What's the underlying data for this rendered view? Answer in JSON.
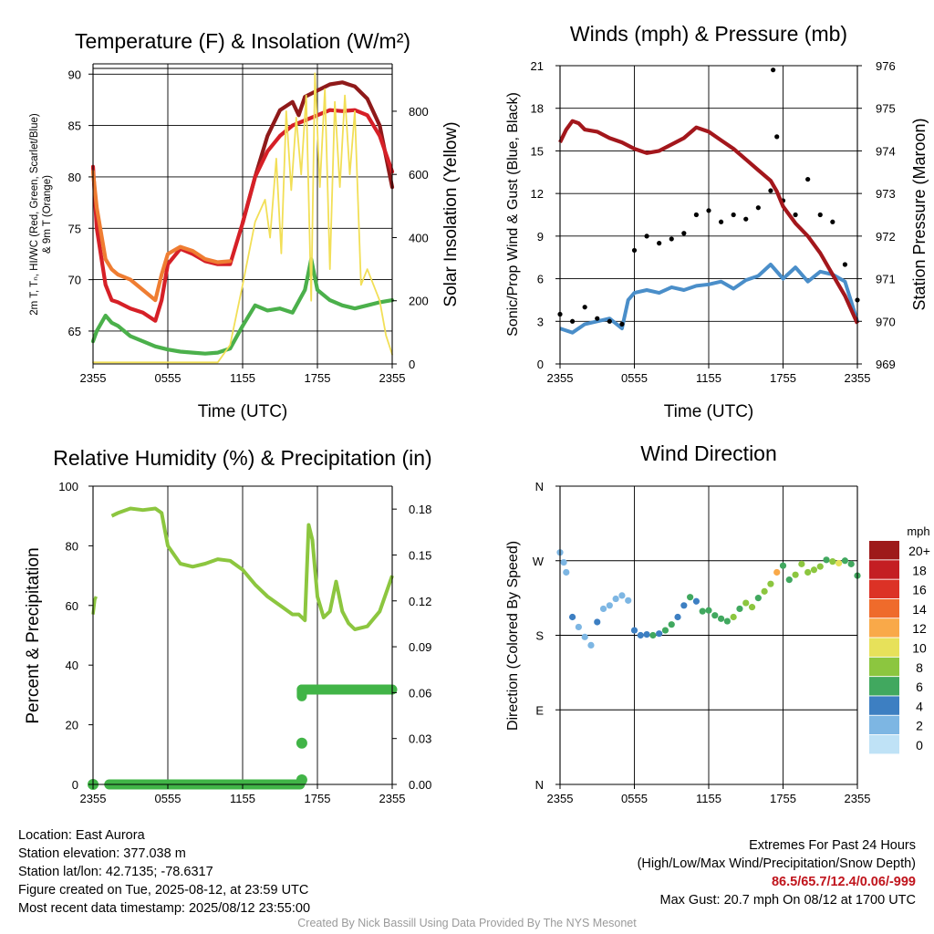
{
  "panels": {
    "temp": {
      "title": "Temperature (F) & Insolation (W/m²)",
      "xlabel": "Time (UTC)",
      "ylabel_left_1": "2m T, Tₙ, HI/WC (Red, Green, Scarlet/Blue)",
      "ylabel_left_2": "& 9m T (Orange)",
      "ylabel_right": "Solar Insolation (Yellow)",
      "xticks": [
        "2355",
        "0555",
        "1155",
        "1755",
        "2355"
      ],
      "yticks_left": [
        "65",
        "70",
        "75",
        "80",
        "85",
        "90"
      ],
      "yticks_right": [
        "0",
        "200",
        "400",
        "600",
        "800"
      ]
    },
    "wind": {
      "title": "Winds (mph) & Pressure (mb)",
      "xlabel": "Time (UTC)",
      "ylabel_left": "Sonic/Prop Wind & Gust (Blue, Black)",
      "ylabel_right": "Station Pressure (Maroon)",
      "xticks": [
        "2355",
        "0555",
        "1155",
        "1755",
        "2355"
      ],
      "yticks_left": [
        "0",
        "3",
        "6",
        "9",
        "12",
        "15",
        "18",
        "21"
      ],
      "yticks_right": [
        "969",
        "970",
        "971",
        "972",
        "973",
        "974",
        "975",
        "976"
      ]
    },
    "rh": {
      "title": "Relative Humidity (%) & Precipitation (in)",
      "ylabel_left": "Percent & Precipitation",
      "xticks": [
        "2355",
        "0555",
        "1155",
        "1755",
        "2355"
      ],
      "yticks_left": [
        "0",
        "20",
        "40",
        "60",
        "80",
        "100"
      ],
      "yticks_right": [
        "0.00",
        "0.03",
        "0.06",
        "0.09",
        "0.12",
        "0.15",
        "0.18"
      ]
    },
    "dir": {
      "title": "Wind Direction",
      "ylabel_left": "Direction (Colored By Speed)",
      "xticks": [
        "2355",
        "0555",
        "1155",
        "1755",
        "2355"
      ],
      "yticks_left": [
        "N",
        "E",
        "S",
        "W",
        "N"
      ],
      "legend_title": "mph",
      "legend_labels": [
        "20+",
        "18",
        "16",
        "14",
        "12",
        "10",
        "8",
        "6",
        "4",
        "2",
        "0"
      ],
      "legend_colors": [
        "#9e1a1a",
        "#c41e23",
        "#dc3226",
        "#ef6b2b",
        "#f9a949",
        "#e7e15a",
        "#8cc63f",
        "#41a85f",
        "#3d7fc2",
        "#7db6e3",
        "#bfe2f6"
      ]
    }
  },
  "info": {
    "location": "Location: East Aurora",
    "elevation": "Station elevation: 377.038 m",
    "latlon": "Station lat/lon: 42.7135; -78.6317",
    "created": "Figure created on Tue, 2025-08-12, at 23:59 UTC",
    "recent": "Most recent data timestamp: 2025/08/12 23:55:00",
    "extremes_title": "Extremes For Past 24 Hours",
    "extremes_sub": "(High/Low/Max Wind/Precipitation/Snow Depth)",
    "extremes_values": "86.5/65.7/12.4/0.06/-999",
    "max_gust": "Max Gust: 20.7 mph On 08/12 at 1700 UTC"
  },
  "credit": "Created By Nick Bassill Using Data Provided By The NYS Mesonet",
  "chart_data": [
    {
      "type": "line",
      "title": "Temperature (F) & Insolation (W/m²)",
      "xlabel": "Time (UTC)",
      "ylabel": "2m T, Tₙ, HI/WC (Red, Green, Scarlet/Blue) & 9m T (Orange)",
      "y2label": "Solar Insolation (Yellow)",
      "x_unit": "hours since 2355 UTC",
      "xlim": [
        0,
        24
      ],
      "ylim": [
        61.8,
        91
      ],
      "y2lim": [
        0,
        950
      ],
      "series": [
        {
          "name": "Heat Index (Scarlet)",
          "color": "#8f1a1a",
          "axis": "left",
          "x": [
            12,
            13,
            14,
            15,
            16,
            16.5,
            17,
            18,
            19,
            20,
            21,
            22,
            23,
            24
          ],
          "y": [
            75.5,
            80,
            84,
            86.5,
            87.3,
            86,
            87.8,
            88.4,
            89,
            89.2,
            88.8,
            87.6,
            85,
            79
          ]
        },
        {
          "name": "2m T (Red)",
          "color": "#d62027",
          "axis": "left",
          "x": [
            0,
            0.3,
            1,
            1.5,
            2,
            3,
            4,
            5,
            5.5,
            6,
            7,
            8,
            9,
            10,
            11,
            12,
            13,
            14,
            15,
            16,
            17,
            18,
            19,
            20,
            21,
            22,
            23,
            24
          ],
          "y": [
            81,
            75,
            69.5,
            68,
            67.8,
            67.2,
            66.8,
            66,
            68,
            71.5,
            73,
            72.5,
            71.8,
            71.5,
            71.5,
            75.5,
            80,
            82.5,
            84,
            85,
            85.5,
            86,
            86.5,
            86.4,
            86.5,
            86,
            84,
            80.5
          ]
        },
        {
          "name": "9m T (Orange)",
          "color": "#ef7d32",
          "axis": "left",
          "x": [
            0,
            0.3,
            1,
            1.5,
            2,
            3,
            4,
            5,
            5.5,
            6,
            7,
            8,
            9,
            10,
            11
          ],
          "y": [
            80.5,
            77,
            72,
            71,
            70.5,
            70,
            69,
            68,
            70.5,
            72.5,
            73.2,
            72.8,
            72,
            71.7,
            71.8
          ]
        },
        {
          "name": "Dewpoint (Green)",
          "color": "#4bb04b",
          "axis": "left",
          "x": [
            0,
            0.3,
            1,
            1.5,
            2,
            3,
            4,
            5,
            6,
            7,
            8,
            9,
            10,
            11,
            12,
            13,
            14,
            15,
            16,
            17,
            17.5,
            18,
            18.5,
            19,
            20,
            21,
            22,
            23,
            24
          ],
          "y": [
            64,
            65,
            66.5,
            65.8,
            65.5,
            64.5,
            64,
            63.5,
            63.2,
            63,
            62.9,
            62.8,
            62.9,
            63.3,
            65.5,
            67.5,
            67,
            67.2,
            66.8,
            69,
            72,
            69,
            68.5,
            68,
            67.5,
            67.2,
            67.5,
            67.8,
            68
          ]
        },
        {
          "name": "Solar Insolation (Yellow)",
          "color": "#f2df57",
          "axis": "right",
          "x": [
            0,
            10,
            11,
            12,
            13,
            13.8,
            14.2,
            14.7,
            15.1,
            15.5,
            15.9,
            16.3,
            16.7,
            17.1,
            17.5,
            17.8,
            18.2,
            18.6,
            19,
            19.4,
            19.8,
            20.2,
            20.6,
            21,
            21.5,
            22,
            23,
            23.5,
            24
          ],
          "y": [
            5,
            5,
            60,
            250,
            450,
            520,
            400,
            650,
            350,
            800,
            550,
            780,
            600,
            850,
            200,
            920,
            560,
            870,
            300,
            830,
            560,
            850,
            600,
            800,
            250,
            300,
            200,
            90,
            30
          ]
        }
      ]
    },
    {
      "type": "line",
      "title": "Winds (mph) & Pressure (mb)",
      "xlabel": "Time (UTC)",
      "ylabel": "Sonic/Prop Wind & Gust (Blue, Black)",
      "y2label": "Station Pressure (Maroon)",
      "x_unit": "hours since 2355 UTC",
      "xlim": [
        0,
        24
      ],
      "ylim": [
        0,
        21
      ],
      "y2lim": [
        969,
        976
      ],
      "series": [
        {
          "name": "Station Pressure (Maroon)",
          "color": "#a3171c",
          "axis": "right",
          "x": [
            0,
            0.5,
            1,
            1.5,
            2,
            3,
            4,
            5,
            6,
            7,
            8,
            9,
            10,
            11,
            12,
            13,
            14,
            15,
            16,
            17,
            17.5,
            18,
            19,
            20,
            21,
            22,
            23,
            24
          ],
          "y": [
            974.2,
            974.5,
            974.7,
            974.65,
            974.5,
            974.45,
            974.3,
            974.2,
            974.05,
            973.95,
            974.0,
            974.15,
            974.3,
            974.55,
            974.45,
            974.25,
            974.05,
            973.8,
            973.55,
            973.3,
            973.05,
            972.7,
            972.3,
            972.0,
            971.6,
            971.1,
            970.6,
            969.95
          ]
        },
        {
          "name": "Sonic/Prop Wind (Blue)",
          "color": "#4a8ec9",
          "axis": "left",
          "x": [
            0,
            1,
            2,
            3,
            4,
            5,
            5.5,
            6,
            7,
            8,
            9,
            10,
            11,
            12,
            13,
            14,
            15,
            16,
            17,
            18,
            19,
            20,
            21,
            22,
            23,
            24
          ],
          "y": [
            2.5,
            2.2,
            2.8,
            3.0,
            3.2,
            2.5,
            4.5,
            5.0,
            5.2,
            5.0,
            5.4,
            5.2,
            5.5,
            5.6,
            5.8,
            5.3,
            5.9,
            6.2,
            7.0,
            6.0,
            6.8,
            5.8,
            6.5,
            6.3,
            5.8,
            3.0
          ]
        },
        {
          "name": "Gust (Black)",
          "color": "#000000",
          "axis": "left",
          "style": "points",
          "x": [
            0,
            1,
            2,
            3,
            4,
            5,
            6,
            7,
            8,
            9,
            10,
            11,
            12,
            13,
            14,
            15,
            16,
            17,
            17.2,
            17.5,
            18,
            19,
            20,
            21,
            22,
            23,
            24
          ],
          "y": [
            3.5,
            3.0,
            4.0,
            3.2,
            3.0,
            2.8,
            8.0,
            9.0,
            8.5,
            8.8,
            9.2,
            10.5,
            10.8,
            10.0,
            10.5,
            10.2,
            11.0,
            12.2,
            20.7,
            16.0,
            11.5,
            10.5,
            13.0,
            10.5,
            10.0,
            7.0,
            4.5
          ]
        }
      ]
    },
    {
      "type": "line",
      "title": "Relative Humidity (%) & Precipitation (in)",
      "ylabel": "Percent & Precipitation",
      "x_unit": "hours since 2355 UTC",
      "xlim": [
        0,
        24
      ],
      "ylim": [
        0,
        100
      ],
      "y2lim": [
        0,
        0.195
      ],
      "series": [
        {
          "name": "Relative Humidity",
          "color": "#8cc63f",
          "axis": "left",
          "x": [
            0,
            0.1,
            0.3,
            1.5,
            2,
            3,
            4,
            5,
            5.5,
            6,
            7,
            8,
            9,
            10,
            11,
            12,
            13,
            14,
            15,
            16,
            16.5,
            17,
            17.3,
            17.6,
            18,
            18.5,
            19,
            19.5,
            20,
            20.5,
            21,
            22,
            23,
            24
          ],
          "y": [
            57,
            62,
            63,
            90,
            91,
            92.5,
            92,
            92.5,
            91,
            80,
            74,
            73,
            74,
            75.5,
            75,
            72,
            67,
            63,
            60,
            57,
            57,
            55,
            87,
            82,
            63,
            56,
            58,
            68,
            58,
            54,
            52,
            53,
            58,
            70
          ]
        },
        {
          "name": "Precipitation",
          "color": "#41b447",
          "axis": "right",
          "style": "points",
          "x": [
            0,
            1,
            2,
            3,
            4,
            5,
            6,
            7,
            8,
            9,
            10,
            11,
            12,
            13,
            14,
            15,
            16,
            16.5,
            16.7,
            17,
            17.5,
            18,
            19,
            20,
            21,
            22,
            23,
            24
          ],
          "y": [
            0,
            0,
            0,
            0,
            0,
            0,
            0,
            0,
            0,
            0,
            0,
            0,
            0,
            0,
            0,
            0,
            0,
            0.003,
            0.027,
            0.06,
            0.062,
            0.062,
            0.062,
            0.062,
            0.062,
            0.062,
            0.062,
            0.062
          ]
        }
      ]
    },
    {
      "type": "scatter",
      "title": "Wind Direction",
      "ylabel": "Direction (Colored By Speed)",
      "x_unit": "hours since 2355 UTC",
      "y_unit": "degrees (0=N, 90=E, 180=S, 270=W, 360=N)",
      "xlim": [
        0,
        24
      ],
      "ylim": [
        0,
        360
      ],
      "x": [
        0,
        0.3,
        0.5,
        1,
        1.5,
        2,
        2.5,
        3,
        3.5,
        4,
        4.5,
        5,
        5.5,
        6,
        6.5,
        7,
        7.5,
        8,
        8.5,
        9,
        9.5,
        10,
        10.5,
        11,
        11.5,
        12,
        12.5,
        13,
        13.5,
        14,
        14.5,
        15,
        15.5,
        16,
        16.5,
        17,
        17.5,
        18,
        18.5,
        19,
        19.5,
        20,
        20.5,
        21,
        21.5,
        22,
        22.5,
        23,
        23.5,
        24
      ],
      "y": [
        280,
        268,
        256,
        202,
        190,
        178,
        168,
        196,
        212,
        216,
        224,
        228,
        222,
        186,
        180,
        181,
        180,
        182,
        186,
        193,
        202,
        216,
        226,
        221,
        209,
        210,
        204,
        200,
        197,
        202,
        212,
        219,
        214,
        225,
        233,
        242,
        256,
        264,
        247,
        253,
        266,
        256,
        259,
        263,
        271,
        269,
        267,
        270,
        266,
        252
      ],
      "speed": [
        1.5,
        2,
        1,
        3,
        2,
        2.5,
        1.5,
        3,
        2.5,
        2,
        1.5,
        1,
        2.5,
        4,
        4.5,
        4,
        5,
        4.5,
        5,
        5,
        4,
        4.5,
        5,
        4,
        5,
        5.5,
        5,
        6,
        6.5,
        7,
        5,
        7.5,
        8,
        6.5,
        7,
        8.5,
        12,
        6,
        6.5,
        7,
        8,
        7,
        7.5,
        8,
        6,
        7,
        9,
        5,
        6,
        5
      ],
      "legend": {
        "title": "mph",
        "labels": [
          "20+",
          "18",
          "16",
          "14",
          "12",
          "10",
          "8",
          "6",
          "4",
          "2",
          "0"
        ]
      }
    }
  ]
}
